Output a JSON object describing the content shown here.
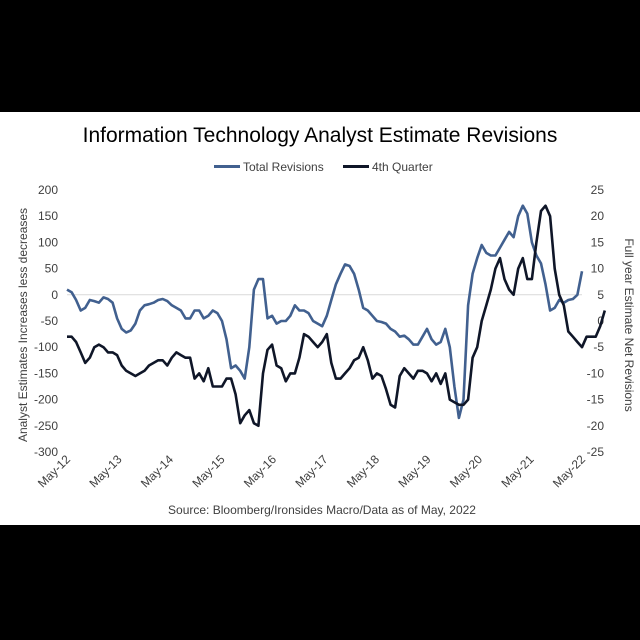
{
  "chart_data": {
    "type": "line",
    "title": "Information Technology Analyst Estimate Revisions",
    "source": "Source: Bloomberg/Ironsides Macro/Data as of May, 2022",
    "ylabel_left": "Analyst Estimates Increases less decreases",
    "ylabel_right": "Full year Estimate Net Revisions",
    "ylim_left": [
      -300,
      200
    ],
    "ylim_right": [
      -25,
      25
    ],
    "yticks_left": [
      200,
      150,
      100,
      50,
      0,
      -50,
      -100,
      -150,
      -200,
      -250,
      -300
    ],
    "yticks_right": [
      25,
      20,
      15,
      10,
      5,
      0,
      -5,
      -10,
      -15,
      -20,
      -25
    ],
    "xticks": [
      "May-12",
      "May-13",
      "May-14",
      "May-15",
      "May-16",
      "May-17",
      "May-18",
      "May-19",
      "May-20",
      "May-21",
      "May-22"
    ],
    "legend_placement": "top-center",
    "series": [
      {
        "name": "Total Revisions",
        "axis": "left",
        "color": "#41608F",
        "values": [
          10,
          5,
          -10,
          -30,
          -25,
          -10,
          -12,
          -15,
          -5,
          -8,
          -15,
          -45,
          -65,
          -72,
          -68,
          -55,
          -30,
          -20,
          -18,
          -15,
          -10,
          -8,
          -12,
          -20,
          -25,
          -30,
          -45,
          -45,
          -30,
          -30,
          -45,
          -40,
          -30,
          -35,
          -50,
          -85,
          -140,
          -135,
          -145,
          -160,
          -100,
          10,
          30,
          30,
          -45,
          -40,
          -55,
          -50,
          -50,
          -40,
          -20,
          -30,
          -30,
          -35,
          -50,
          -55,
          -60,
          -40,
          -10,
          20,
          40,
          58,
          55,
          40,
          10,
          -25,
          -30,
          -40,
          -50,
          -52,
          -55,
          -65,
          -70,
          -80,
          -78,
          -85,
          -95,
          -95,
          -80,
          -65,
          -85,
          -95,
          -90,
          -65,
          -100,
          -175,
          -235,
          -200,
          -20,
          40,
          70,
          95,
          80,
          75,
          75,
          90,
          105,
          120,
          110,
          150,
          170,
          155,
          100,
          75,
          60,
          20,
          -30,
          -25,
          -10,
          -15,
          -10,
          -8,
          0,
          45
        ]
      },
      {
        "name": "4th Quarter",
        "axis": "right",
        "color": "#0F1628",
        "values": [
          -3,
          -3,
          -4,
          -6,
          -8,
          -7,
          -5,
          -4.5,
          -5,
          -6,
          -6,
          -6.5,
          -8.5,
          -9.5,
          -10,
          -10.5,
          -10,
          -9.5,
          -8.5,
          -8,
          -7.5,
          -7.5,
          -8.5,
          -7,
          -6,
          -6.5,
          -7,
          -7,
          -11,
          -10,
          -11.5,
          -9,
          -12.5,
          -12.5,
          -12.5,
          -11,
          -11,
          -14,
          -19.5,
          -18,
          -17,
          -19.5,
          -20,
          -10,
          -5.5,
          -4.5,
          -8.5,
          -9,
          -11.5,
          -10,
          -10,
          -7,
          -2.5,
          -3,
          -4,
          -5,
          -4,
          -2.5,
          -8,
          -11,
          -11,
          -10,
          -9,
          -7.5,
          -7,
          -5,
          -7.5,
          -11,
          -10,
          -10.5,
          -13,
          -16,
          -16.5,
          -10.5,
          -9,
          -10,
          -11,
          -9.5,
          -9.5,
          -10,
          -11.5,
          -10,
          -12,
          -10,
          -15,
          -15.5,
          -16,
          -16,
          -15,
          -7,
          -5,
          0,
          3,
          6,
          10,
          12,
          8,
          6,
          5,
          10,
          12,
          8,
          8,
          15,
          21,
          22,
          20,
          10,
          5,
          3,
          -2,
          -3,
          -4,
          -5,
          -3,
          -3,
          -3,
          -1,
          2
        ]
      }
    ]
  }
}
